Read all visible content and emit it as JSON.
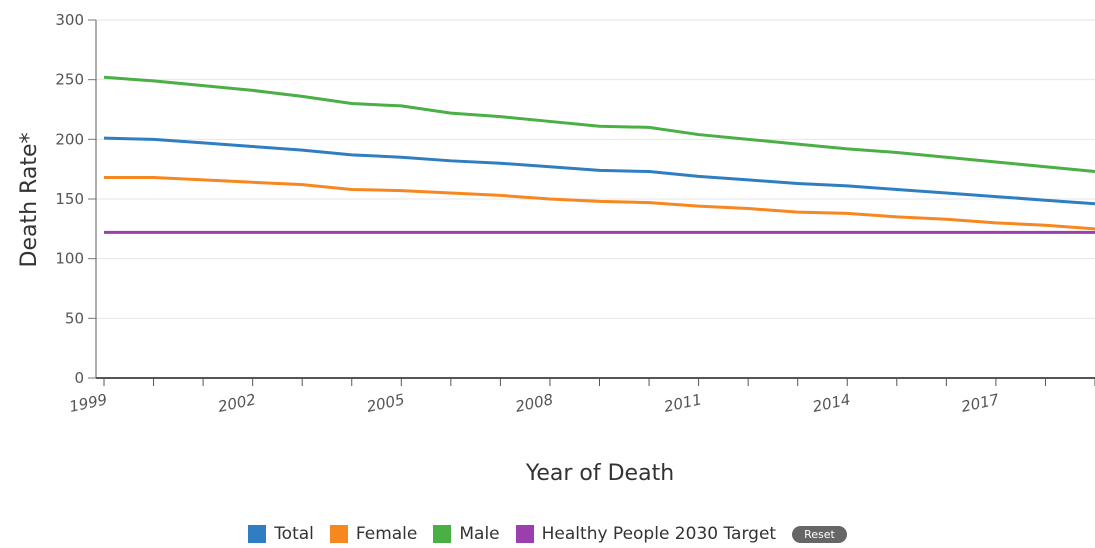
{
  "chart_data": {
    "type": "line",
    "xlabel": "Year of Death",
    "ylabel": "Death Rate*",
    "ylim": [
      0,
      300
    ],
    "xlim": [
      1999,
      2019
    ],
    "yticks": [
      "0",
      "50",
      "100",
      "150",
      "200",
      "250",
      "300"
    ],
    "xtick_labels": [
      "1999",
      "2002",
      "2005",
      "2008",
      "2011",
      "2014",
      "2017"
    ],
    "x": [
      1999,
      2000,
      2001,
      2002,
      2003,
      2004,
      2005,
      2006,
      2007,
      2008,
      2009,
      2010,
      2011,
      2012,
      2013,
      2014,
      2015,
      2016,
      2017,
      2018,
      2019
    ],
    "series": [
      {
        "name": "Total",
        "color": "#2f7ec1",
        "values": [
          201,
          200,
          197,
          194,
          191,
          187,
          185,
          182,
          180,
          177,
          174,
          173,
          169,
          166,
          163,
          161,
          158,
          155,
          152,
          149,
          146
        ]
      },
      {
        "name": "Female",
        "color": "#f7871f",
        "values": [
          168,
          168,
          166,
          164,
          162,
          158,
          157,
          155,
          153,
          150,
          148,
          147,
          144,
          142,
          139,
          138,
          135,
          133,
          130,
          128,
          125
        ]
      },
      {
        "name": "Male",
        "color": "#4aaf45",
        "values": [
          252,
          249,
          245,
          241,
          236,
          230,
          228,
          222,
          219,
          215,
          211,
          210,
          204,
          200,
          196,
          192,
          189,
          185,
          181,
          177,
          173
        ]
      },
      {
        "name": "Healthy People 2030 Target",
        "color": "#9b3fae",
        "values": [
          122,
          122,
          122,
          122,
          122,
          122,
          122,
          122,
          122,
          122,
          122,
          122,
          122,
          122,
          122,
          122,
          122,
          122,
          122,
          122,
          122
        ]
      }
    ],
    "grid": true,
    "legend_position": "bottom-center"
  },
  "legend": {
    "items": [
      {
        "label": "Total",
        "color": "#2f7ec1"
      },
      {
        "label": "Female",
        "color": "#f7871f"
      },
      {
        "label": "Male",
        "color": "#4aaf45"
      },
      {
        "label": "Healthy People 2030 Target",
        "color": "#9b3fae"
      }
    ],
    "reset_label": "Reset"
  }
}
